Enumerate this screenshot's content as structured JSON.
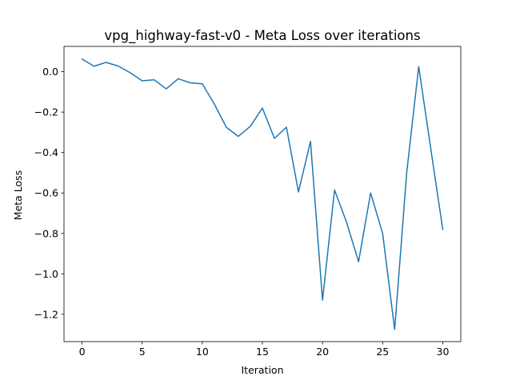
{
  "chart_data": {
    "type": "line",
    "title": "vpg_highway-fast-v0 - Meta Loss over iterations",
    "xlabel": "Iteration",
    "ylabel": "Meta Loss",
    "xlim": [
      -1.5,
      31.5
    ],
    "ylim": [
      -1.335,
      0.125
    ],
    "xticks": [
      0,
      5,
      10,
      15,
      20,
      25,
      30
    ],
    "xtick_labels": [
      "0",
      "5",
      "10",
      "15",
      "20",
      "25",
      "30"
    ],
    "yticks": [
      0.0,
      -0.2,
      -0.4,
      -0.6,
      -0.8,
      -1.0,
      -1.2
    ],
    "ytick_labels": [
      "0.0",
      "−0.2",
      "−0.4",
      "−0.6",
      "−0.8",
      "−1.0",
      "−1.2"
    ],
    "grid": false,
    "series": [
      {
        "color": "#1f77b4",
        "x": [
          0,
          1,
          2,
          3,
          4,
          5,
          6,
          7,
          8,
          9,
          10,
          11,
          12,
          13,
          14,
          15,
          16,
          17,
          18,
          19,
          20,
          21,
          22,
          23,
          24,
          25,
          26,
          27,
          28,
          29,
          30
        ],
        "y": [
          0.062,
          0.027,
          0.046,
          0.028,
          -0.005,
          -0.045,
          -0.04,
          -0.085,
          -0.035,
          -0.055,
          -0.06,
          -0.16,
          -0.275,
          -0.32,
          -0.27,
          -0.18,
          -0.33,
          -0.275,
          -0.595,
          -0.345,
          -1.13,
          -0.585,
          -0.745,
          -0.94,
          -0.6,
          -0.8,
          -1.275,
          -0.5,
          0.025,
          -0.38,
          -0.78
        ]
      }
    ]
  }
}
